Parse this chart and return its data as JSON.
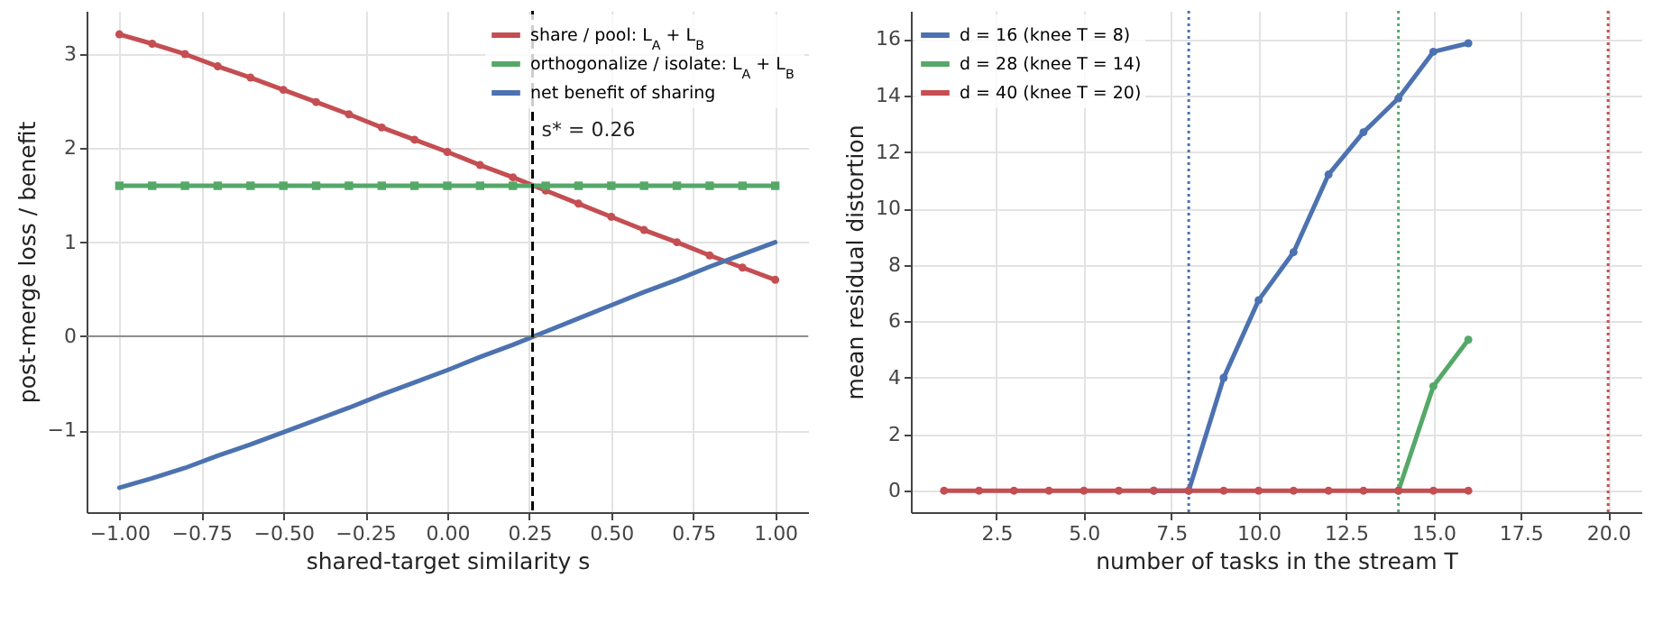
{
  "chart_data": [
    {
      "type": "line",
      "xlabel": "shared-target similarity  s",
      "ylabel": "post-merge loss / benefit",
      "x": [
        -1.0,
        -0.9,
        -0.8,
        -0.7,
        -0.6,
        -0.5,
        -0.4,
        -0.3,
        -0.2,
        -0.1,
        0.0,
        0.1,
        0.2,
        0.3,
        0.4,
        0.5,
        0.6,
        0.7,
        0.8,
        0.9,
        1.0
      ],
      "series": [
        {
          "name": "share / pool: L$_{A}$ + L$_{B}$",
          "color": "#c44e52",
          "marker": "circle",
          "values": [
            3.21,
            3.11,
            3.0,
            2.87,
            2.75,
            2.62,
            2.49,
            2.36,
            2.22,
            2.09,
            1.96,
            1.82,
            1.69,
            1.55,
            1.41,
            1.27,
            1.13,
            1.0,
            0.86,
            0.73,
            0.6
          ]
        },
        {
          "name": "orthogonalize / isolate: L$_{A}$ + L$_{B}$",
          "color": "#55a868",
          "marker": "square",
          "values": [
            1.6,
            1.6,
            1.6,
            1.6,
            1.6,
            1.6,
            1.6,
            1.6,
            1.6,
            1.6,
            1.6,
            1.6,
            1.6,
            1.6,
            1.6,
            1.6,
            1.6,
            1.6,
            1.6,
            1.6,
            1.6
          ]
        },
        {
          "name": "net benefit of sharing",
          "color": "#4c72b0",
          "marker": "none",
          "values": [
            -1.61,
            -1.51,
            -1.4,
            -1.27,
            -1.15,
            -1.02,
            -0.89,
            -0.76,
            -0.62,
            -0.49,
            -0.36,
            -0.22,
            -0.09,
            0.05,
            0.19,
            0.33,
            0.47,
            0.6,
            0.74,
            0.87,
            1.0
          ]
        }
      ],
      "xlim": [
        -1.1,
        1.1
      ],
      "ylim": [
        -1.87,
        3.46
      ],
      "xticks": [
        {
          "value": -1,
          "label": "−1.00"
        },
        {
          "value": -0.75,
          "label": "−0.75"
        },
        {
          "value": -0.5,
          "label": "−0.50"
        },
        {
          "value": -0.25,
          "label": "−0.25"
        },
        {
          "value": 0,
          "label": "0.00"
        },
        {
          "value": 0.25,
          "label": "0.25"
        },
        {
          "value": 0.5,
          "label": "0.50"
        },
        {
          "value": 0.75,
          "label": "0.75"
        },
        {
          "value": 1,
          "label": "1.00"
        }
      ],
      "yticks": [
        {
          "value": -1,
          "label": "−1"
        },
        0,
        1,
        2,
        3
      ],
      "ref_lines": [
        {
          "axis": "y",
          "value": 0,
          "color": "#808080",
          "line_style": "solid"
        },
        {
          "axis": "x",
          "value": 0.26,
          "label": "s* = 0.26",
          "color": "#000000",
          "line_style": "dashed"
        }
      ],
      "grid": true,
      "legend": "top right"
    },
    {
      "type": "line",
      "xlabel": "number of tasks in the stream  T",
      "ylabel": "mean residual distortion",
      "x": [
        1,
        2,
        3,
        4,
        5,
        6,
        7,
        8,
        9,
        10,
        11,
        12,
        13,
        14,
        15,
        16
      ],
      "series": [
        {
          "name": "d = 16 (knee T = 8)",
          "color": "#4c72b0",
          "marker": "circle",
          "values": [
            null,
            null,
            null,
            null,
            null,
            null,
            0,
            0,
            4.0,
            6.75,
            8.45,
            11.2,
            12.7,
            13.9,
            15.55,
            15.85
          ]
        },
        {
          "name": "d = 28 (knee T = 14)",
          "color": "#55a868",
          "marker": "circle",
          "values": [
            null,
            null,
            null,
            null,
            null,
            null,
            null,
            null,
            null,
            null,
            null,
            null,
            null,
            0,
            3.7,
            5.35
          ]
        },
        {
          "name": "d = 40 (knee T = 20)",
          "color": "#c44e52",
          "marker": "circle",
          "values": [
            0,
            0,
            0,
            0,
            0,
            0,
            0,
            0,
            0,
            0,
            0,
            0,
            0,
            0,
            0,
            0
          ]
        }
      ],
      "xlim": [
        0.05,
        20.95
      ],
      "ylim": [
        -0.76,
        17.0
      ],
      "xticks": [
        2.5,
        {
          "value": 5,
          "label": "5.0"
        },
        7.5,
        {
          "value": 10,
          "label": "10.0"
        },
        12.5,
        {
          "value": 15,
          "label": "15.0"
        },
        17.5,
        {
          "value": 20,
          "label": "20.0"
        }
      ],
      "yticks": [
        0,
        2,
        4,
        6,
        8,
        10,
        12,
        14,
        16
      ],
      "ref_lines": [
        {
          "axis": "x",
          "value": 8,
          "color": "#4c72b0",
          "line_style": "dotted"
        },
        {
          "axis": "x",
          "value": 14,
          "color": "#55a868",
          "line_style": "dotted"
        },
        {
          "axis": "x",
          "value": 20,
          "color": "#c44e52",
          "line_style": "dotted"
        }
      ],
      "grid": true,
      "legend": "top left"
    }
  ]
}
